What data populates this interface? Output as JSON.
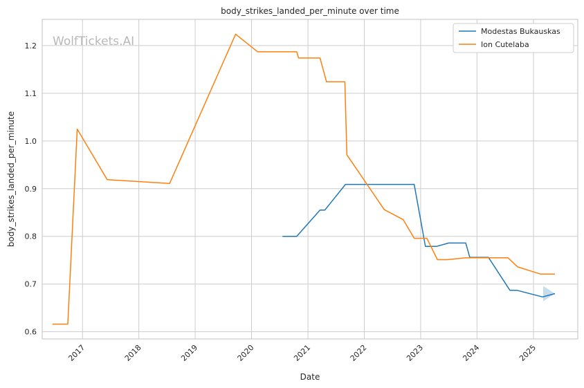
{
  "chart_data": {
    "type": "line",
    "title": "body_strikes_landed_per_minute over time",
    "xlabel": "Date",
    "ylabel": "body_strikes_landed_per_minute",
    "watermark": "WolfTickets.AI",
    "x_ticks": [
      "2017",
      "2018",
      "2019",
      "2020",
      "2021",
      "2022",
      "2023",
      "2024",
      "2025"
    ],
    "y_ticks": [
      "0.6",
      "0.7",
      "0.8",
      "0.9",
      "1.0",
      "1.1",
      "1.2"
    ],
    "xlim": [
      "2016-04-15",
      "2025-10-15"
    ],
    "ylim": [
      0.585,
      1.255
    ],
    "grid": true,
    "legend_position": "top-right",
    "series": [
      {
        "name": "Modestas Bukauskas",
        "color": "#1f77b4",
        "points": [
          {
            "x": "2020-07-20",
            "y": 0.8
          },
          {
            "x": "2020-10-20",
            "y": 0.8
          },
          {
            "x": "2021-03-20",
            "y": 0.855
          },
          {
            "x": "2021-04-20",
            "y": 0.855
          },
          {
            "x": "2021-09-01",
            "y": 0.909
          },
          {
            "x": "2022-11-20",
            "y": 0.909
          },
          {
            "x": "2023-02-01",
            "y": 0.779
          },
          {
            "x": "2023-04-15",
            "y": 0.779
          },
          {
            "x": "2023-07-01",
            "y": 0.786
          },
          {
            "x": "2023-10-20",
            "y": 0.786
          },
          {
            "x": "2023-11-15",
            "y": 0.756
          },
          {
            "x": "2024-03-15",
            "y": 0.756
          },
          {
            "x": "2024-08-01",
            "y": 0.687
          },
          {
            "x": "2024-09-15",
            "y": 0.687
          },
          {
            "x": "2025-03-01",
            "y": 0.673
          },
          {
            "x": "2025-05-20",
            "y": 0.68
          }
        ]
      },
      {
        "name": "Ion Cutelaba",
        "color": "#ff7f0e",
        "points": [
          {
            "x": "2016-06-20",
            "y": 0.616
          },
          {
            "x": "2016-09-28",
            "y": 0.616
          },
          {
            "x": "2016-11-28",
            "y": 1.025
          },
          {
            "x": "2017-06-10",
            "y": 0.919
          },
          {
            "x": "2018-07-20",
            "y": 0.911
          },
          {
            "x": "2019-09-20",
            "y": 1.224
          },
          {
            "x": "2020-02-10",
            "y": 1.187
          },
          {
            "x": "2020-10-20",
            "y": 1.187
          },
          {
            "x": "2020-11-01",
            "y": 1.174
          },
          {
            "x": "2021-03-20",
            "y": 1.174
          },
          {
            "x": "2021-05-01",
            "y": 1.124
          },
          {
            "x": "2021-08-28",
            "y": 1.124
          },
          {
            "x": "2021-09-10",
            "y": 0.971
          },
          {
            "x": "2022-05-10",
            "y": 0.856
          },
          {
            "x": "2022-09-10",
            "y": 0.835
          },
          {
            "x": "2022-11-20",
            "y": 0.796
          },
          {
            "x": "2023-02-10",
            "y": 0.796
          },
          {
            "x": "2023-04-20",
            "y": 0.751
          },
          {
            "x": "2023-06-20",
            "y": 0.751
          },
          {
            "x": "2023-10-20",
            "y": 0.755
          },
          {
            "x": "2024-07-20",
            "y": 0.755
          },
          {
            "x": "2024-09-20",
            "y": 0.736
          },
          {
            "x": "2025-02-15",
            "y": 0.721
          },
          {
            "x": "2025-05-20",
            "y": 0.721
          }
        ]
      }
    ]
  }
}
